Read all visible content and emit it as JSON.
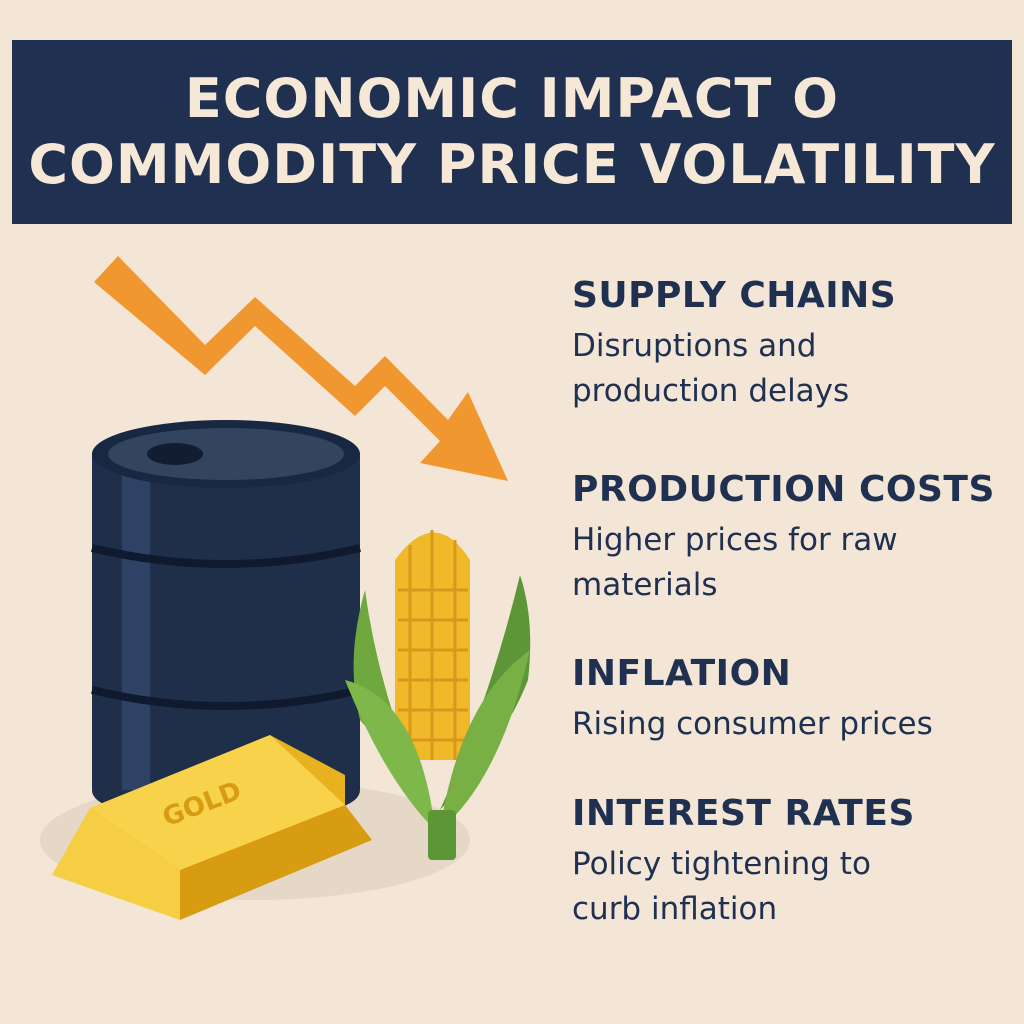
{
  "header": {
    "title_line1": "ECONOMIC IMPACT O",
    "title_line2": "COMMODITY PRICE VOLATILITY"
  },
  "illustration": {
    "icons": [
      "trend-down-arrow-icon",
      "oil-barrel-icon",
      "gold-bar-icon",
      "corn-icon"
    ],
    "gold_label": "GOLD"
  },
  "factors": [
    {
      "title": "SUPPLY CHAINS",
      "description": "Disruptions and production delays"
    },
    {
      "title": "PRODUCTION COSTS",
      "description": "Higher prices for raw materials"
    },
    {
      "title": "INFLATION",
      "description": "Rising consumer prices"
    },
    {
      "title": "INTEREST RATES",
      "description": "Policy tightening to curb inflation"
    }
  ],
  "colors": {
    "background": "#f3e6d6",
    "banner": "#1f3050",
    "arrow": "#f0982f",
    "barrel": "#1f2f4a",
    "gold": "#f2c230",
    "corn": "#f0b92a",
    "leaf": "#6fa83f"
  }
}
